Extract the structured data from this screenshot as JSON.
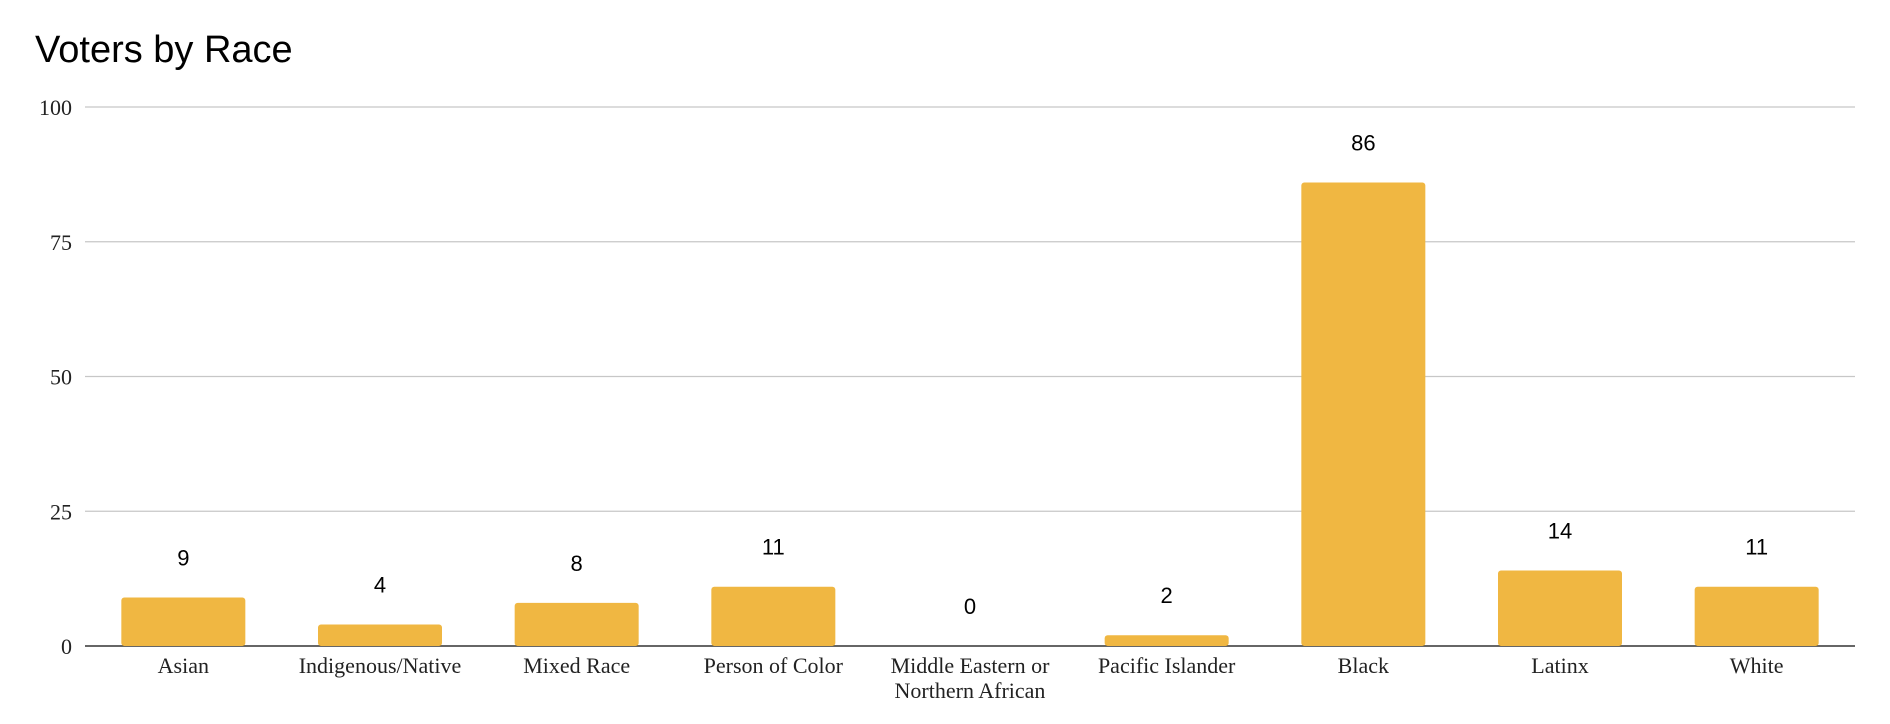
{
  "chart_data": {
    "type": "bar",
    "title": "Voters by Race",
    "xlabel": "",
    "ylabel": "",
    "categories": [
      "Asian",
      "Indigenous/Native",
      "Mixed Race",
      "Person of Color",
      "Middle Eastern or Northern African",
      "Pacific Islander",
      "Black",
      "Latinx",
      "White"
    ],
    "category_lines": [
      [
        "Asian"
      ],
      [
        "Indigenous/Native"
      ],
      [
        "Mixed Race"
      ],
      [
        "Person of Color"
      ],
      [
        "Middle Eastern or",
        "Northern African"
      ],
      [
        "Pacific Islander"
      ],
      [
        "Black"
      ],
      [
        "Latinx"
      ],
      [
        "White"
      ]
    ],
    "values": [
      9,
      4,
      8,
      11,
      0,
      2,
      86,
      14,
      11
    ],
    "data_labels": [
      "9",
      "4",
      "8",
      "11",
      "0",
      "2",
      "86",
      "14",
      "11"
    ],
    "ylim": [
      0,
      100
    ],
    "yticks": [
      0,
      25,
      50,
      75,
      100
    ],
    "ytick_labels": [
      "0",
      "25",
      "50",
      "75",
      "100"
    ],
    "grid": true,
    "legend": "none",
    "bar_color": "#F0B742"
  }
}
